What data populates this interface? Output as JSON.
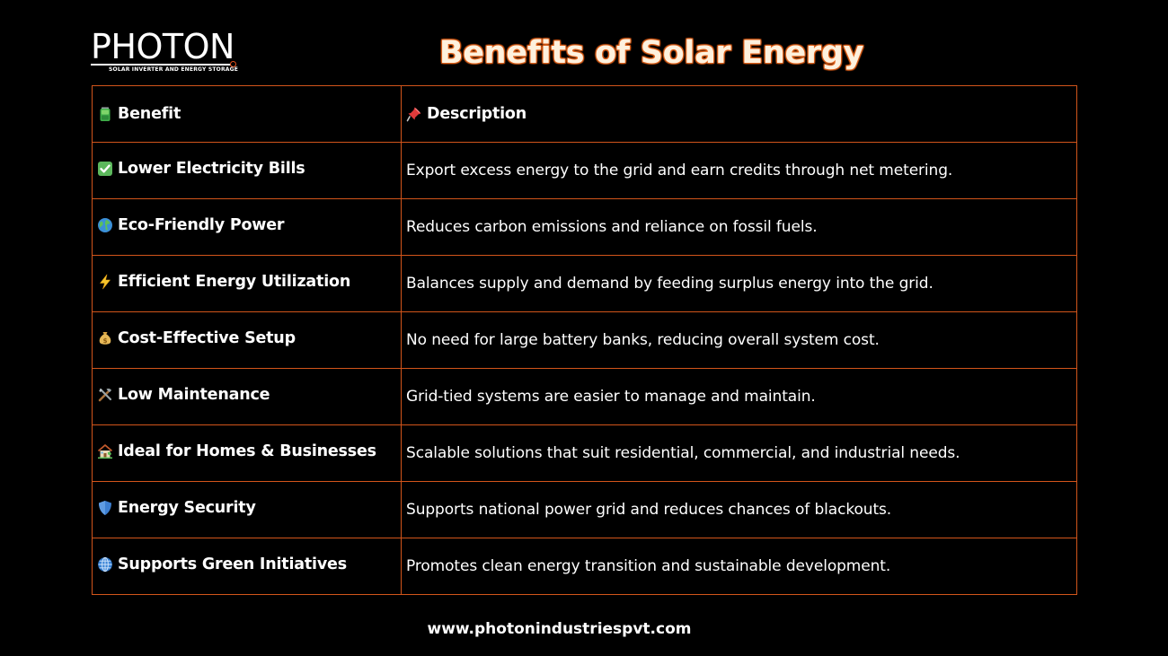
{
  "brand": {
    "logo_text": "PHOTON",
    "tagline": "SOLAR INVERTER AND ENERGY STORAGE"
  },
  "title": "Benefits of Solar Energy",
  "table": {
    "header": {
      "benefit": {
        "label": "Benefit",
        "icon": "battery-icon"
      },
      "description": {
        "label": "Description",
        "icon": "pushpin-icon"
      }
    },
    "rows": [
      {
        "icon": "check-mark-icon",
        "benefit": "Lower Electricity Bills",
        "description": "Export excess energy to the grid and earn credits through net metering."
      },
      {
        "icon": "globe-icon",
        "benefit": "Eco-Friendly Power",
        "description": "Reduces carbon emissions and reliance on fossil fuels."
      },
      {
        "icon": "lightning-icon",
        "benefit": "Efficient Energy Utilization",
        "description": "Balances supply and demand by feeding surplus energy into the grid."
      },
      {
        "icon": "money-bag-icon",
        "benefit": "Cost-Effective Setup",
        "description": "No need for large battery banks, reducing overall system cost."
      },
      {
        "icon": "tools-icon",
        "benefit": "Low Maintenance",
        "description": "Grid-tied systems are easier to manage and maintain."
      },
      {
        "icon": "house-icon",
        "benefit": "Ideal for Homes & Businesses",
        "description": "Scalable solutions that suit residential, commercial, and industrial needs."
      },
      {
        "icon": "shield-icon",
        "benefit": "Energy Security",
        "description": "Supports national power grid and reduces chances of blackouts."
      },
      {
        "icon": "globe-meridians-icon",
        "benefit": "Supports Green Initiatives",
        "description": "Promotes clean energy transition and sustainable development."
      }
    ]
  },
  "footer": {
    "website": "www.photonindustriespvt.com"
  },
  "colors": {
    "background": "#000000",
    "border": "#d2551b",
    "title_fill": "#fdf1de",
    "title_outline": "#e3631b",
    "text": "#ffffff",
    "logo_accent": "#e8521a"
  }
}
